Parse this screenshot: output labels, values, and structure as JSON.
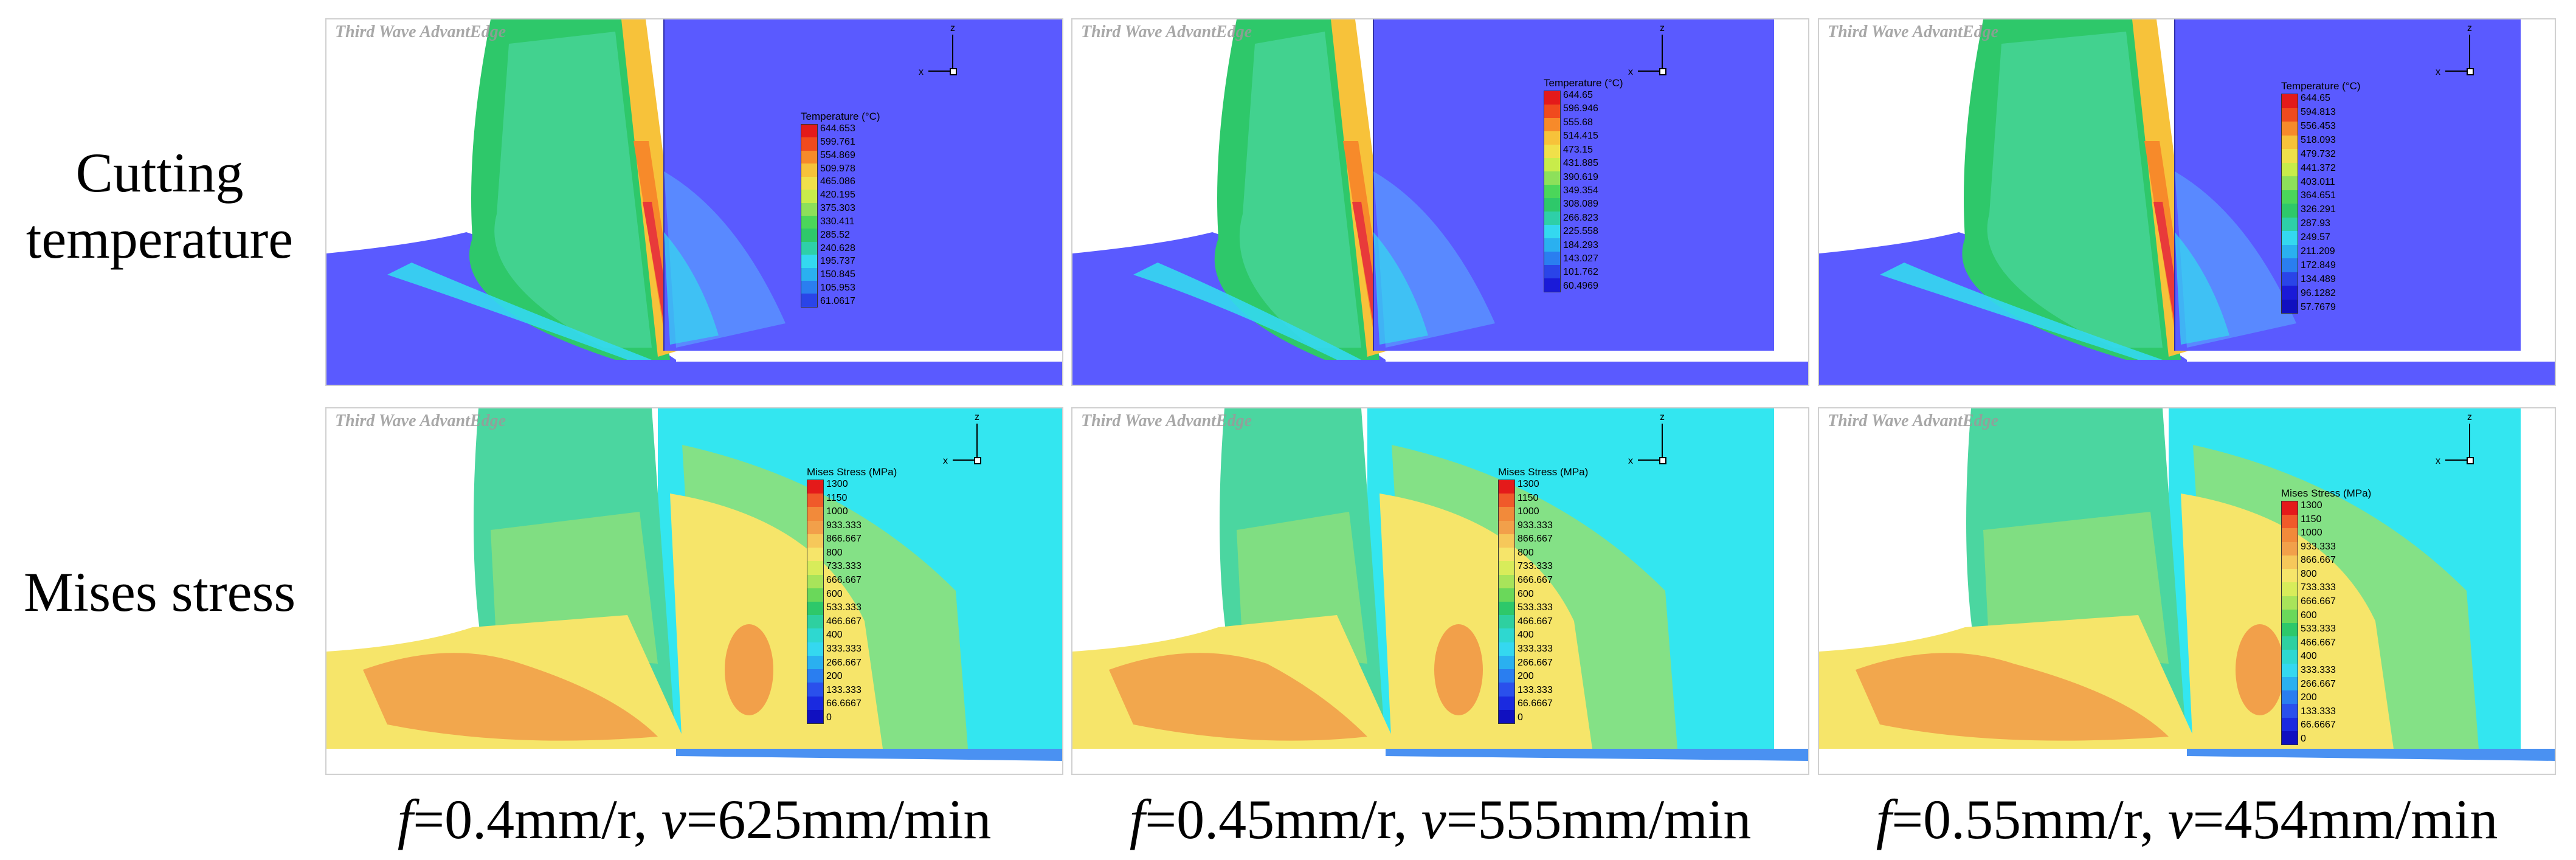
{
  "rows": [
    {
      "label_line1": "Cutting",
      "label_line2": "temperature"
    },
    {
      "label_line1": "Mises stress",
      "label_line2": ""
    }
  ],
  "columns": [
    {
      "f_sym": "f",
      "f_val": "=0.4mm/r, ",
      "v_sym": "v",
      "v_val": "=625mm/min"
    },
    {
      "f_sym": "f",
      "f_val": "=0.45mm/r, ",
      "v_sym": "v",
      "v_val": "=555mm/min"
    },
    {
      "f_sym": "f",
      "f_val": "=0.55mm/r, ",
      "v_sym": "v",
      "v_val": "=454mm/min"
    }
  ],
  "watermark": "Third Wave AdvantEdge",
  "axis_labels": {
    "z": "z",
    "x": "x"
  },
  "temperature_legends": [
    {
      "title": "Temperature (°C)",
      "ticks": [
        "644.653",
        "599.761",
        "554.869",
        "509.978",
        "465.086",
        "420.195",
        "375.303",
        "330.411",
        "285.52",
        "240.628",
        "195.737",
        "150.845",
        "105.953",
        "61.0617"
      ]
    },
    {
      "title": "Temperature (°C)",
      "ticks": [
        "644.65",
        "596.946",
        "555.68",
        "514.415",
        "473.15",
        "431.885",
        "390.619",
        "349.354",
        "308.089",
        "266.823",
        "225.558",
        "184.293",
        "143.027",
        "101.762",
        "60.4969"
      ]
    },
    {
      "title": "Temperature (°C)",
      "ticks": [
        "644.65",
        "594.813",
        "556.453",
        "518.093",
        "479.732",
        "441.372",
        "403.011",
        "364.651",
        "326.291",
        "287.93",
        "249.57",
        "211.209",
        "172.849",
        "134.489",
        "96.1282",
        "57.7679"
      ]
    }
  ],
  "stress_legends": [
    {
      "title": "Mises Stress (MPa)",
      "ticks": [
        "1300",
        "1150",
        "1000",
        "933.333",
        "866.667",
        "800",
        "733.333",
        "666.667",
        "600",
        "533.333",
        "466.667",
        "400",
        "333.333",
        "266.667",
        "200",
        "133.333",
        "66.6667",
        "0"
      ]
    },
    {
      "title": "Mises Stress (MPa)",
      "ticks": [
        "1300",
        "1150",
        "1000",
        "933.333",
        "866.667",
        "800",
        "733.333",
        "666.667",
        "600",
        "533.333",
        "466.667",
        "400",
        "333.333",
        "266.667",
        "200",
        "133.333",
        "66.6667",
        "0"
      ]
    },
    {
      "title": "Mises Stress (MPa)",
      "ticks": [
        "1300",
        "1150",
        "1000",
        "933.333",
        "866.667",
        "800",
        "733.333",
        "666.667",
        "600",
        "533.333",
        "466.667",
        "400",
        "333.333",
        "266.667",
        "200",
        "133.333",
        "66.6667",
        "0"
      ]
    }
  ],
  "colors": {
    "background": "#ffffff",
    "temp_base": "#5a5aff",
    "stress_base": "#33e6f0",
    "hot": "#e83a3a",
    "warm": "#f7c23a",
    "mid": "#2ec86a",
    "cool": "#34d8f0",
    "stress_high": "#f2a04a",
    "stress_mid": "#f6e56a",
    "stress_low": "#8de07a"
  }
}
